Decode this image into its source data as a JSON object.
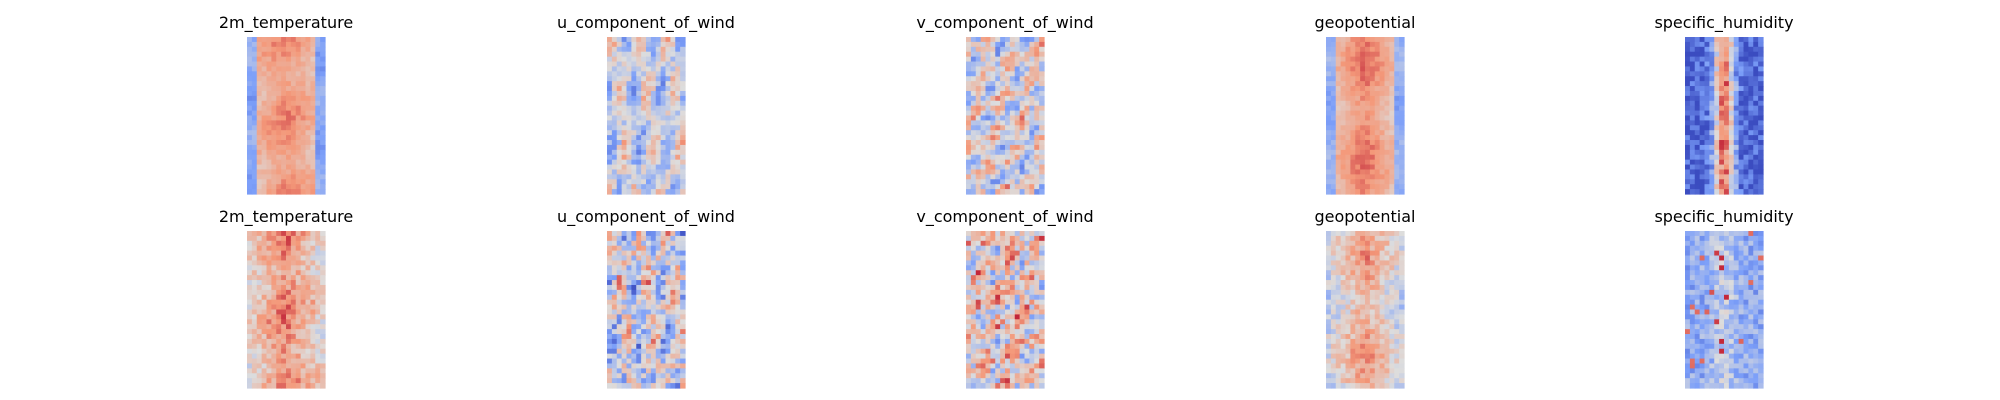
{
  "chart_data": [
    {
      "type": "heatmap",
      "title": "2m_temperature",
      "row": 0,
      "col": 0,
      "pattern": "temp_smooth",
      "colormap": "coolwarm"
    },
    {
      "type": "heatmap",
      "title": "u_component_of_wind",
      "row": 0,
      "col": 1,
      "pattern": "uwind_smooth",
      "colormap": "coolwarm"
    },
    {
      "type": "heatmap",
      "title": "v_component_of_wind",
      "row": 0,
      "col": 2,
      "pattern": "vwind_smooth",
      "colormap": "coolwarm"
    },
    {
      "type": "heatmap",
      "title": "geopotential",
      "row": 0,
      "col": 3,
      "pattern": "geo_smooth",
      "colormap": "coolwarm"
    },
    {
      "type": "heatmap",
      "title": "specific_humidity",
      "row": 0,
      "col": 4,
      "pattern": "humid_smooth",
      "colormap": "coolwarm"
    },
    {
      "type": "heatmap",
      "title": "2m_temperature",
      "row": 1,
      "col": 0,
      "pattern": "temp_noisy",
      "colormap": "coolwarm"
    },
    {
      "type": "heatmap",
      "title": "u_component_of_wind",
      "row": 1,
      "col": 1,
      "pattern": "uwind_noisy",
      "colormap": "coolwarm"
    },
    {
      "type": "heatmap",
      "title": "v_component_of_wind",
      "row": 1,
      "col": 2,
      "pattern": "vwind_noisy",
      "colormap": "coolwarm"
    },
    {
      "type": "heatmap",
      "title": "geopotential",
      "row": 1,
      "col": 3,
      "pattern": "geo_noisy",
      "colormap": "coolwarm"
    },
    {
      "type": "heatmap",
      "title": "specific_humidity",
      "row": 1,
      "col": 4,
      "pattern": "humid_noisy",
      "colormap": "coolwarm"
    }
  ]
}
